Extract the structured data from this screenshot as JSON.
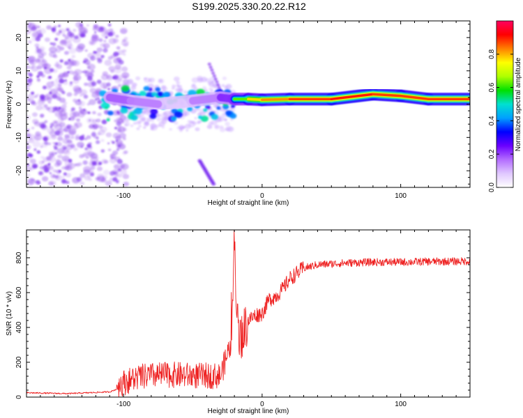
{
  "title": "S199.2025.330.20.22.R12",
  "colors": {
    "signal_line": "#ee2222",
    "axis": "#000000",
    "speckle": "#9a5cf0",
    "ridge_core": "#ff1a1a"
  },
  "chart_data": [
    {
      "type": "heatmap",
      "panel": "top",
      "xlabel": "Height of straight line (km)",
      "ylabel": "Frequency (Hz)",
      "xlim": [
        -170,
        150
      ],
      "ylim": [
        -25,
        25
      ],
      "x_ticks": [
        -100,
        0,
        100
      ],
      "x_tick_labels": [
        "-100",
        "0",
        "100"
      ],
      "y_ticks": [
        -20,
        -10,
        0,
        10,
        20
      ],
      "y_tick_labels": [
        "-20",
        "-10",
        "0",
        "10",
        "20"
      ],
      "colorbar": {
        "label": "Normalized spectral amplitude",
        "range": [
          0,
          1
        ],
        "ticks": [
          0.0,
          0.2,
          0.4,
          0.6,
          0.8
        ],
        "tick_labels": [
          "0.0",
          "0.2",
          "0.4",
          "0.6",
          "0.8"
        ],
        "colormap": [
          "#ffffff",
          "#e0c8ff",
          "#b36cff",
          "#6a00ff",
          "#0000ff",
          "#00a0ff",
          "#00e0d0",
          "#00e000",
          "#b0ff00",
          "#ffff00",
          "#ff8000",
          "#ff0000",
          "#ff0060"
        ]
      },
      "ridge": [
        {
          "x": -110,
          "f": 2,
          "amp": 0.35
        },
        {
          "x": -95,
          "f": 1,
          "amp": 0.3
        },
        {
          "x": -75,
          "f": 0,
          "amp": 0.25
        },
        {
          "x": -50,
          "f": 1,
          "amp": 0.25
        },
        {
          "x": -30,
          "f": 2,
          "amp": 0.3
        },
        {
          "x": -20,
          "f": 1.5,
          "amp": 0.5
        },
        {
          "x": -10,
          "f": 1.5,
          "amp": 0.75
        },
        {
          "x": 0,
          "f": 1.3,
          "amp": 0.8
        },
        {
          "x": 20,
          "f": 1.5,
          "amp": 0.85
        },
        {
          "x": 50,
          "f": 1.5,
          "amp": 0.9
        },
        {
          "x": 80,
          "f": 3,
          "amp": 0.9
        },
        {
          "x": 100,
          "f": 2.5,
          "amp": 0.85
        },
        {
          "x": 120,
          "f": 1.5,
          "amp": 0.9
        },
        {
          "x": 150,
          "f": 1.5,
          "amp": 0.85
        }
      ]
    },
    {
      "type": "line",
      "panel": "bottom",
      "xlabel": "Height of straight line (km)",
      "ylabel": "SNR (10 * v/v)",
      "xlim": [
        -170,
        150
      ],
      "ylim": [
        0,
        960
      ],
      "x_ticks": [
        -100,
        0,
        100
      ],
      "x_tick_labels": [
        "-100",
        "0",
        "100"
      ],
      "y_ticks": [
        0,
        200,
        400,
        600,
        800
      ],
      "y_tick_labels": [
        "0",
        "200",
        "400",
        "600",
        "800"
      ],
      "series": [
        {
          "name": "SNR",
          "x": [
            -170,
            -140,
            -110,
            -100,
            -90,
            -80,
            -70,
            -60,
            -50,
            -40,
            -30,
            -22,
            -20,
            -18,
            -15,
            -10,
            -5,
            0,
            5,
            10,
            15,
            20,
            25,
            30,
            40,
            60,
            80,
            100,
            120,
            150
          ],
          "y": [
            25,
            20,
            30,
            60,
            90,
            100,
            105,
            105,
            100,
            100,
            100,
            300,
            940,
            420,
            350,
            440,
            470,
            480,
            560,
            580,
            620,
            680,
            710,
            740,
            760,
            770,
            775,
            775,
            778,
            780
          ]
        }
      ]
    }
  ]
}
